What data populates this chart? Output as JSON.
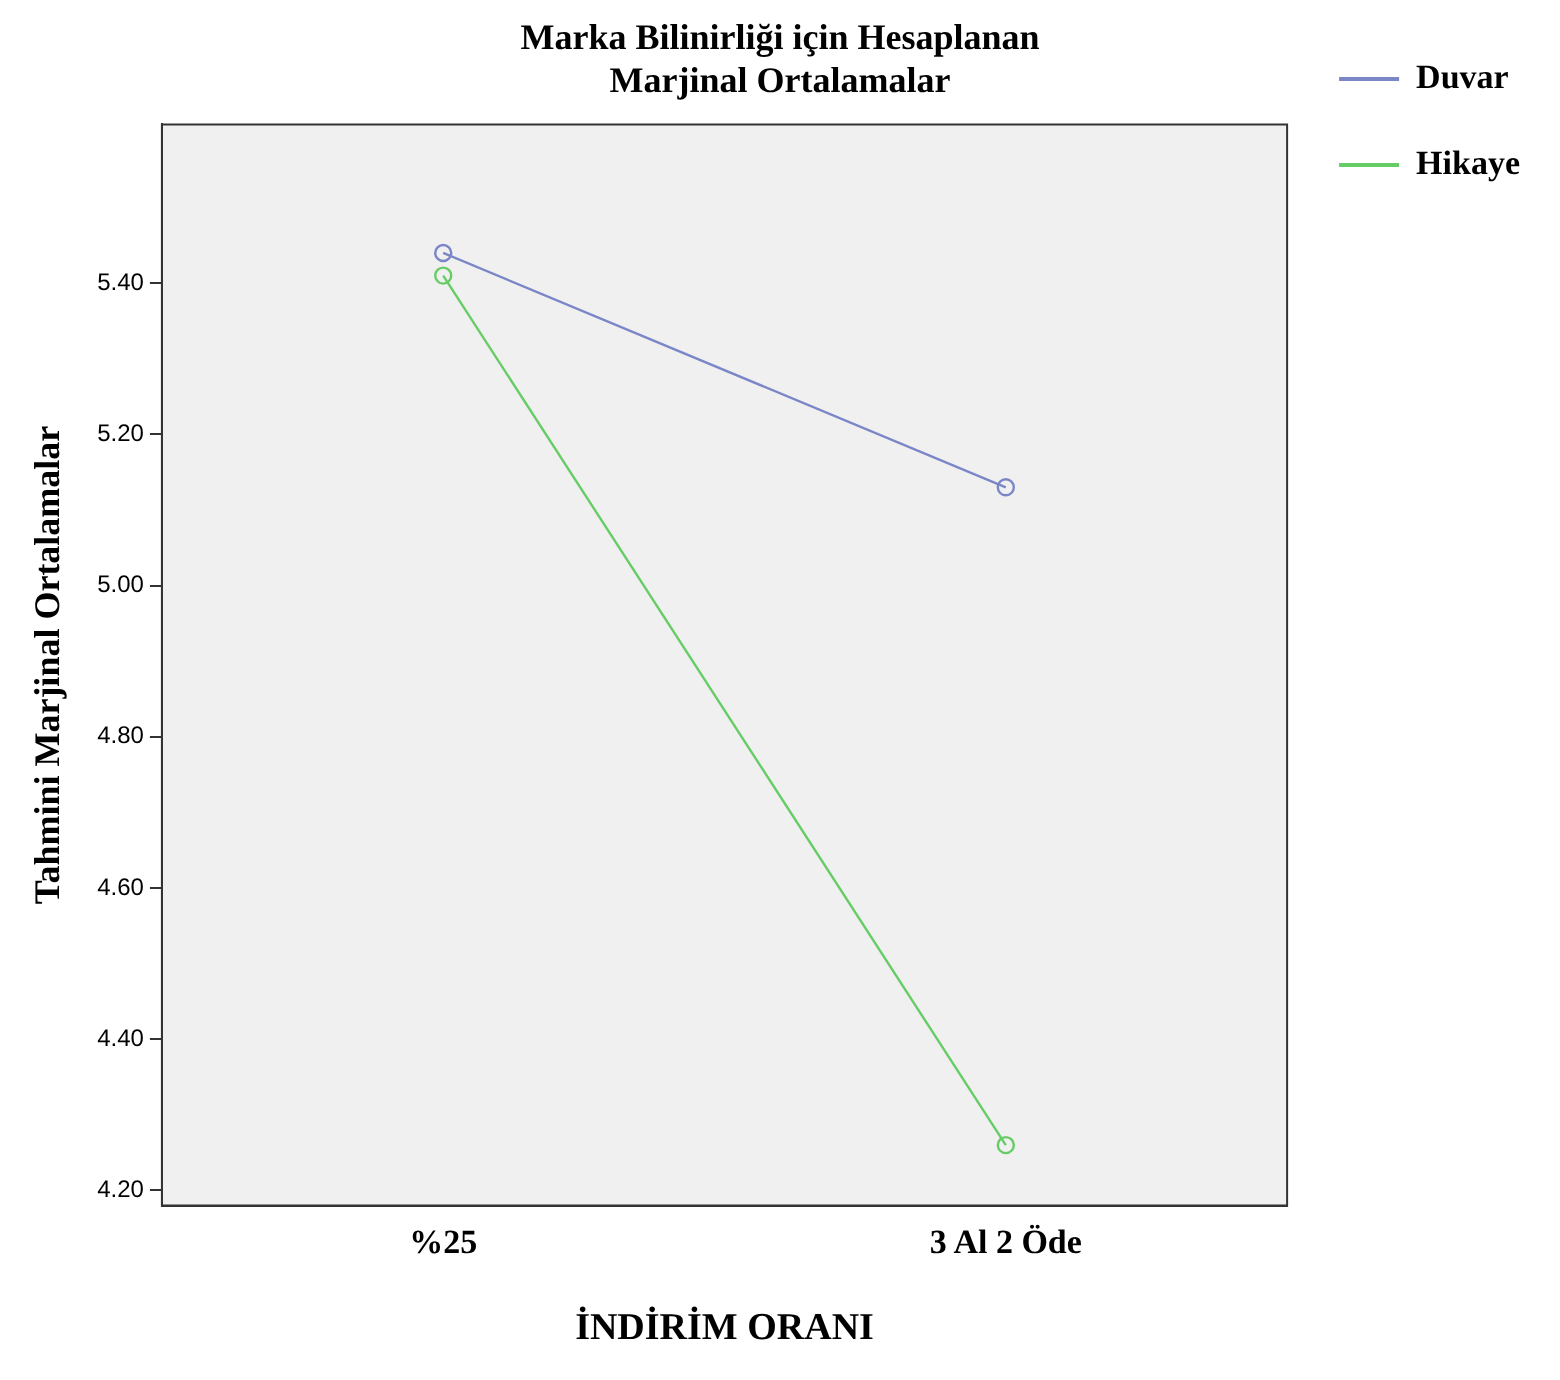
{
  "chart_data": {
    "type": "line",
    "title": "Marka Bilinirliği için Hesaplanan\nMarjinal Ortalamalar",
    "xlabel": "İNDİRİM ORANI",
    "ylabel": "Tahmini Marjinal Ortalamalar",
    "categories": [
      "%25",
      "3 Al 2 Öde"
    ],
    "series": [
      {
        "name": "Duvar",
        "color": "#7b86c7",
        "values": [
          5.44,
          5.13
        ]
      },
      {
        "name": "Hikaye",
        "color": "#66cc66",
        "values": [
          5.41,
          4.26
        ]
      }
    ],
    "ylim": [
      4.18,
      5.61
    ],
    "yticks": [
      {
        "value": 4.2,
        "label": "4.20"
      },
      {
        "value": 4.4,
        "label": "4.40"
      },
      {
        "value": 4.6,
        "label": "4.60"
      },
      {
        "value": 4.8,
        "label": "4.80"
      },
      {
        "value": 5.0,
        "label": "5.00"
      },
      {
        "value": 5.2,
        "label": "5.20"
      },
      {
        "value": 5.4,
        "label": "5.40"
      }
    ],
    "grid": false,
    "legend": "top right",
    "marker": "circle",
    "line_style": "solid"
  }
}
